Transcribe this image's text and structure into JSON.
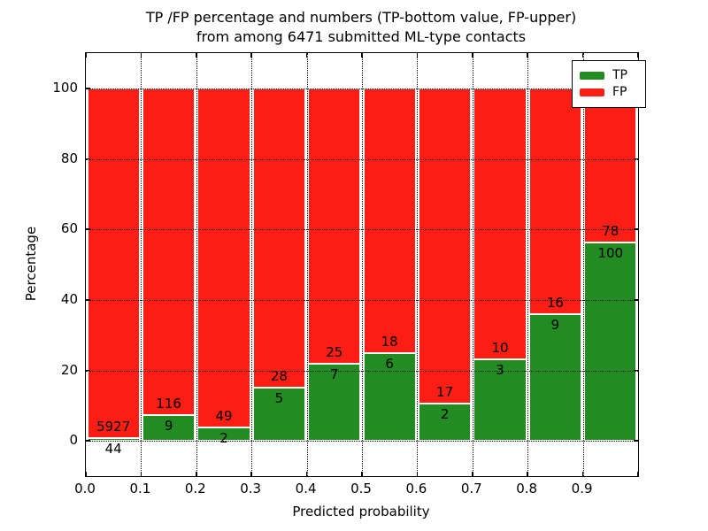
{
  "title": {
    "line1": "TP /FP percentage and numbers (TP-bottom value, FP-upper)",
    "line2": "from among 6471 submitted ML-type contacts"
  },
  "axes": {
    "xlabel": "Predicted probability",
    "ylabel": "Percentage",
    "xtick_labels": [
      "0.0",
      "0.1",
      "0.2",
      "0.3",
      "0.4",
      "0.5",
      "0.6",
      "0.7",
      "0.8",
      "0.9"
    ],
    "ytick_labels": [
      "0",
      "20",
      "40",
      "60",
      "80",
      "100"
    ],
    "ytick_values": [
      0,
      20,
      40,
      60,
      80,
      100
    ],
    "xlim": [
      0.0,
      1.0
    ],
    "ylim": [
      -10,
      110
    ]
  },
  "legend": {
    "position": "upper right",
    "items": [
      {
        "label": "TP",
        "color": "#228b22"
      },
      {
        "label": "FP",
        "color": "#fb1e15"
      }
    ]
  },
  "chart_data": {
    "type": "bar",
    "stacked": true,
    "normalized": "each bin stacked to 100%",
    "title": "TP /FP percentage and numbers (TP-bottom value, FP-upper) from among 6471 submitted ML-type contacts",
    "xlabel": "Predicted probability",
    "ylabel": "Percentage",
    "xlim": [
      0.0,
      1.0
    ],
    "ylim": [
      -10,
      110
    ],
    "grid": "dotted both axes",
    "legend_position": "upper right",
    "total_contacts": 6471,
    "bin_width": 0.1,
    "bin_starts": [
      0.0,
      0.1,
      0.2,
      0.3,
      0.4,
      0.5,
      0.6,
      0.7,
      0.8,
      0.9
    ],
    "series": [
      {
        "name": "TP",
        "color": "#228b22",
        "counts": [
          44,
          9,
          2,
          5,
          7,
          6,
          2,
          3,
          9,
          100
        ],
        "percent": [
          0.74,
          7.2,
          3.92,
          15.15,
          21.88,
          25.0,
          10.53,
          23.08,
          36.0,
          56.18
        ]
      },
      {
        "name": "FP",
        "color": "#fb1e15",
        "counts": [
          5927,
          116,
          49,
          28,
          25,
          18,
          17,
          10,
          16,
          78
        ],
        "percent": [
          99.26,
          92.8,
          96.08,
          84.85,
          78.12,
          75.0,
          89.47,
          76.92,
          64.0,
          43.82
        ]
      }
    ]
  }
}
